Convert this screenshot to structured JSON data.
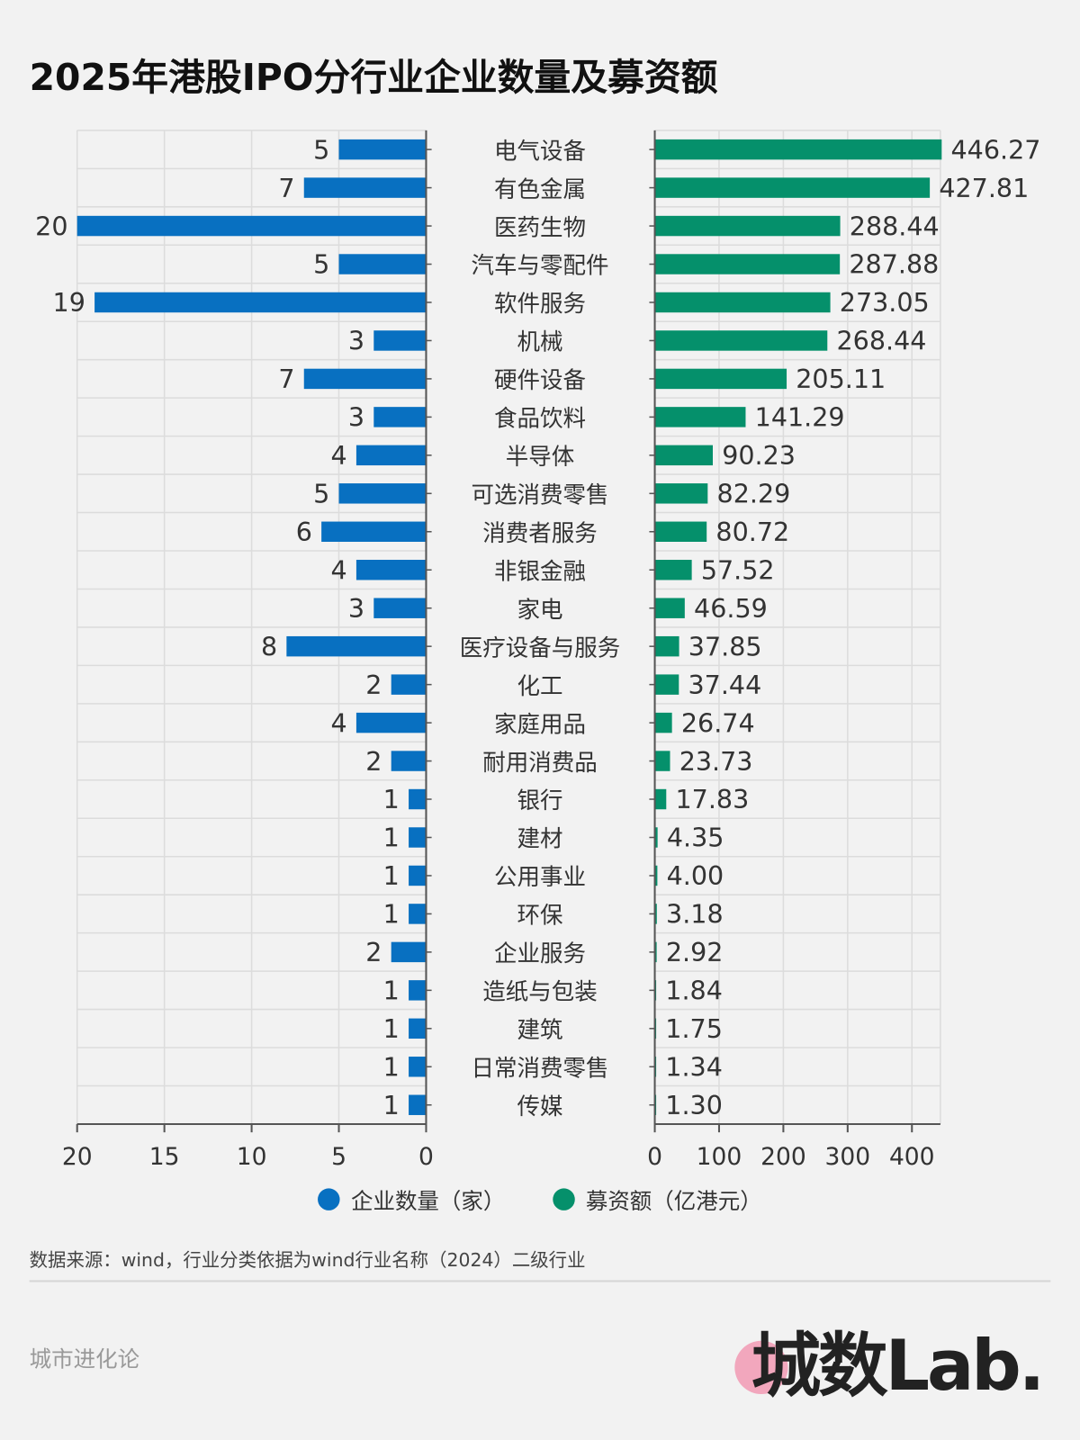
{
  "title": "2025年港股IPO分行业企业数量及募资额",
  "chart_data": {
    "type": "bar",
    "layout": "butterfly horizontal bar",
    "categories": [
      "电气设备",
      "有色金属",
      "医药生物",
      "汽车与零配件",
      "软件服务",
      "机械",
      "硬件设备",
      "食品饮料",
      "半导体",
      "可选消费零售",
      "消费者服务",
      "非银金融",
      "家电",
      "医疗设备与服务",
      "化工",
      "家庭用品",
      "耐用消费品",
      "银行",
      "建材",
      "公用事业",
      "环保",
      "企业服务",
      "造纸与包装",
      "建筑",
      "日常消费零售",
      "传媒"
    ],
    "series": [
      {
        "name": "企业数量（家）",
        "color": "#0870c1",
        "values": [
          5,
          7,
          20,
          5,
          19,
          3,
          7,
          3,
          4,
          5,
          6,
          4,
          3,
          8,
          2,
          4,
          2,
          1,
          1,
          1,
          1,
          2,
          1,
          1,
          1,
          1
        ],
        "labels": [
          "5",
          "7",
          "20",
          "5",
          "19",
          "3",
          "7",
          "3",
          "4",
          "5",
          "6",
          "4",
          "3",
          "8",
          "2",
          "4",
          "2",
          "1",
          "1",
          "1",
          "1",
          "2",
          "1",
          "1",
          "1",
          "1"
        ],
        "xlim": [
          20,
          0
        ],
        "ticks": [
          "20",
          "15",
          "10",
          "5",
          "0"
        ]
      },
      {
        "name": "募资额（亿港元）",
        "color": "#05906b",
        "values": [
          446.27,
          427.81,
          288.44,
          287.88,
          273.05,
          268.44,
          205.11,
          141.29,
          90.23,
          82.29,
          80.72,
          57.52,
          46.59,
          37.85,
          37.44,
          26.74,
          23.73,
          17.83,
          4.35,
          4.0,
          3.18,
          2.92,
          1.84,
          1.75,
          1.34,
          1.3
        ],
        "labels": [
          "446.27",
          "427.81",
          "288.44",
          "287.88",
          "273.05",
          "268.44",
          "205.11",
          "141.29",
          "90.23",
          "82.29",
          "80.72",
          "57.52",
          "46.59",
          "37.85",
          "37.44",
          "26.74",
          "23.73",
          "17.83",
          "4.35",
          "4.00",
          "3.18",
          "2.92",
          "1.84",
          "1.75",
          "1.34",
          "1.30"
        ],
        "xlim": [
          0,
          444
        ],
        "ticks": [
          "0",
          "100",
          "200",
          "300",
          "400"
        ]
      }
    ],
    "grid": true,
    "legend": "bottom-center"
  },
  "source": "数据来源：wind，行业分类依据为wind行业名称（2024）二级行业",
  "brand": "城市进化论",
  "logo_text": "城数Lab."
}
